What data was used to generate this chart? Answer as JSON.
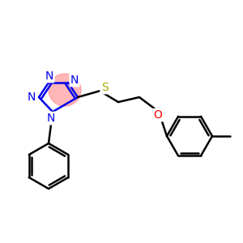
{
  "bg_color": "#ffffff",
  "atom_colors": {
    "N": "#0000ee",
    "S": "#aaaa00",
    "O": "#ff0000",
    "C": "#000000",
    "highlight": "#ff8888"
  },
  "figsize": [
    3.0,
    3.0
  ],
  "dpi": 100
}
